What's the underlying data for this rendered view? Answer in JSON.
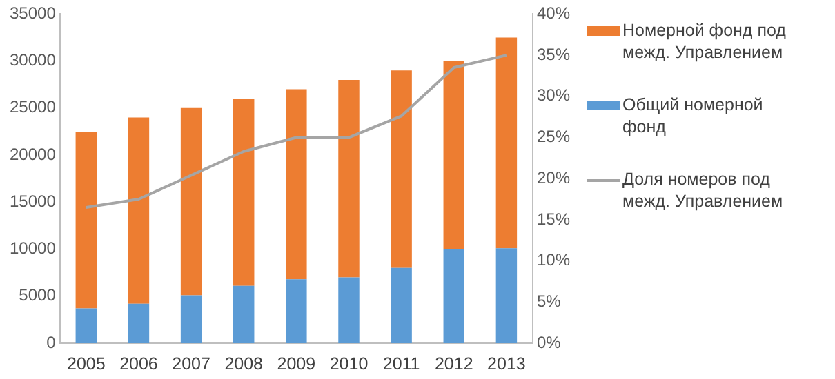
{
  "chart_data": {
    "type": "bar",
    "stacked": true,
    "categories": [
      "2005",
      "2006",
      "2007",
      "2008",
      "2009",
      "2010",
      "2011",
      "2012",
      "2013"
    ],
    "series": [
      {
        "name": "Общий номерной фонд",
        "color": "#5b9bd5",
        "values": [
          3700,
          4200,
          5100,
          6100,
          6800,
          7000,
          8000,
          10000,
          10100
        ]
      },
      {
        "name": "Номерной фонд под межд. Управлением",
        "color": "#ed7d31",
        "values": [
          18800,
          19800,
          19900,
          19900,
          20200,
          21000,
          21000,
          20000,
          22400
        ]
      },
      {
        "name": "Доля номеров под межд. Управлением",
        "type": "line",
        "axis": "y2",
        "color": "#a5a5a5",
        "marker": "none",
        "values": [
          16.5,
          17.5,
          20.4,
          23.3,
          25,
          25,
          27.6,
          33.5,
          35
        ]
      }
    ],
    "ylim": [
      0,
      35000
    ],
    "yticks": [
      0,
      5000,
      10000,
      15000,
      20000,
      25000,
      30000,
      35000
    ],
    "y2lim": [
      0,
      40
    ],
    "y2ticks": [
      {
        "value": 0,
        "label": "0%"
      },
      {
        "value": 5,
        "label": "5%"
      },
      {
        "value": 10,
        "label": "10%"
      },
      {
        "value": 15,
        "label": "15%"
      },
      {
        "value": 20,
        "label": "20%"
      },
      {
        "value": 25,
        "label": "25%"
      },
      {
        "value": 30,
        "label": "30%"
      },
      {
        "value": 35,
        "label": "35%"
      },
      {
        "value": 40,
        "label": "40%"
      }
    ],
    "grid": false,
    "legend": "right"
  }
}
